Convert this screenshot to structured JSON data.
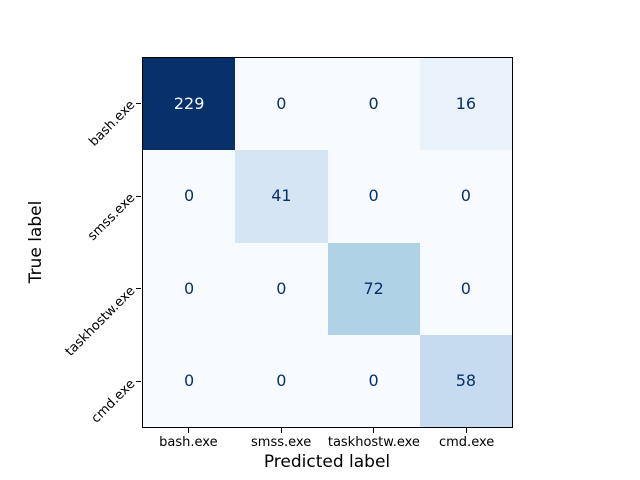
{
  "chart_data": {
    "type": "heatmap",
    "subtype": "confusion-matrix",
    "title": "",
    "xlabel": "Predicted label",
    "ylabel": "True label",
    "categories": [
      "bash.exe",
      "smss.exe",
      "taskhostw.exe",
      "cmd.exe"
    ],
    "x_tick_labels": [
      "bash.exe",
      "smss.exe",
      "taskhostw.exe",
      "cmd.exe"
    ],
    "y_tick_labels": [
      "bash.exe",
      "smss.exe",
      "taskhostw.exe",
      "cmd.exe"
    ],
    "matrix": [
      [
        229,
        0,
        0,
        16
      ],
      [
        0,
        41,
        0,
        0
      ],
      [
        0,
        0,
        72,
        0
      ],
      [
        0,
        0,
        0,
        58
      ]
    ],
    "colormap": "Blues",
    "vmin": 0,
    "vmax": 229,
    "grid": false,
    "legend": "none",
    "colors": {
      "background": "#ffffff",
      "spine": "#000000",
      "text_on_dark": "#f7fbff",
      "text_on_light": "#08306b"
    },
    "rows": [
      {
        "cells": [
          {
            "value": "229",
            "bg": "#08306b",
            "fg": "#f7fbff"
          },
          {
            "value": "0",
            "bg": "#f7fbff",
            "fg": "#08306b"
          },
          {
            "value": "0",
            "bg": "#f7fbff",
            "fg": "#08306b"
          },
          {
            "value": "16",
            "bg": "#e9f2fa",
            "fg": "#08306b"
          }
        ]
      },
      {
        "cells": [
          {
            "value": "0",
            "bg": "#f7fbff",
            "fg": "#08306b"
          },
          {
            "value": "41",
            "bg": "#d5e5f4",
            "fg": "#08306b"
          },
          {
            "value": "0",
            "bg": "#f7fbff",
            "fg": "#08306b"
          },
          {
            "value": "0",
            "bg": "#f7fbff",
            "fg": "#08306b"
          }
        ]
      },
      {
        "cells": [
          {
            "value": "0",
            "bg": "#f7fbff",
            "fg": "#08306b"
          },
          {
            "value": "0",
            "bg": "#f7fbff",
            "fg": "#08306b"
          },
          {
            "value": "72",
            "bg": "#b0d2e7",
            "fg": "#08306b"
          },
          {
            "value": "0",
            "bg": "#f7fbff",
            "fg": "#08306b"
          }
        ]
      },
      {
        "cells": [
          {
            "value": "0",
            "bg": "#f7fbff",
            "fg": "#08306b"
          },
          {
            "value": "0",
            "bg": "#f7fbff",
            "fg": "#08306b"
          },
          {
            "value": "0",
            "bg": "#f7fbff",
            "fg": "#08306b"
          },
          {
            "value": "58",
            "bg": "#c6dbef",
            "fg": "#08306b"
          }
        ]
      }
    ]
  }
}
